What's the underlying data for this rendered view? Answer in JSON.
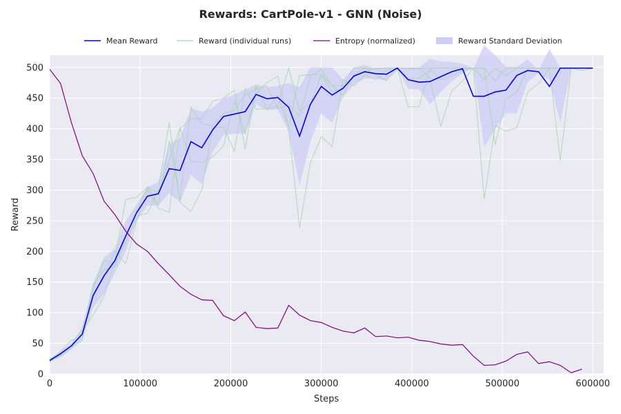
{
  "chart_data": {
    "type": "line",
    "title": "Rewards: CartPole-v1 - GNN (Noise)",
    "xlabel": "Steps",
    "ylabel": "Reward",
    "xlim": [
      0,
      612000
    ],
    "ylim": [
      0,
      520
    ],
    "xticks": [
      0,
      100000,
      200000,
      300000,
      400000,
      500000,
      600000
    ],
    "yticks": [
      0,
      50,
      100,
      150,
      200,
      250,
      300,
      350,
      400,
      450,
      500
    ],
    "grid": true,
    "legend_position": "top",
    "legend": [
      {
        "label": "Mean Reward",
        "color": "#0000ee",
        "kind": "line"
      },
      {
        "label": "Reward (individual runs)",
        "color": "#a8d5b0",
        "kind": "line"
      },
      {
        "label": "Entropy (normalized)",
        "color": "#800080",
        "kind": "line"
      },
      {
        "label": "Reward Standard Deviation",
        "color": "#ccccf5",
        "kind": "patch"
      }
    ],
    "x": [
      0,
      12000,
      24000,
      36000,
      48000,
      60000,
      72000,
      84000,
      96000,
      108000,
      120000,
      132000,
      144000,
      156000,
      168000,
      180000,
      192000,
      204000,
      216000,
      228000,
      240000,
      252000,
      264000,
      276000,
      288000,
      300000,
      312000,
      324000,
      336000,
      348000,
      360000,
      372000,
      384000,
      396000,
      408000,
      420000,
      432000,
      444000,
      456000,
      468000,
      480000,
      492000,
      504000,
      516000,
      528000,
      540000,
      552000,
      564000,
      576000,
      588000,
      600000
    ],
    "series": [
      {
        "name": "Mean Reward",
        "color": "#0000ee",
        "values": [
          22,
          33,
          46,
          65,
          128,
          160,
          185,
          225,
          263,
          290,
          294,
          335,
          332,
          379,
          369,
          398,
          420,
          424,
          428,
          456,
          449,
          451,
          435,
          388,
          440,
          469,
          455,
          466,
          486,
          493,
          490,
          489,
          499,
          480,
          476,
          477,
          485,
          493,
          498,
          453,
          453,
          460,
          463,
          487,
          495,
          493,
          469,
          499,
          499,
          499,
          499
        ]
      },
      {
        "name": "Entropy (normalized)",
        "color": "#800080",
        "values": [
          497,
          474,
          410,
          356,
          327,
          282,
          260,
          233,
          212,
          200,
          180,
          162,
          143,
          130,
          121,
          120,
          95,
          87,
          101,
          76,
          74,
          75,
          112,
          96,
          87,
          84,
          76,
          70,
          67,
          75,
          61,
          62,
          59,
          60,
          55,
          53,
          49,
          47,
          48,
          29,
          14,
          15,
          21,
          32,
          36,
          17,
          20,
          14,
          2,
          8,
          null
        ]
      }
    ],
    "runs": [
      [
        25,
        34,
        42,
        55,
        145,
        170,
        175,
        225,
        265,
        305,
        275,
        380,
        285,
        435,
        408,
        405,
        425,
        430,
        455,
        465,
        470,
        432,
        440,
        420,
        486,
        497,
        470,
        455,
        488,
        499,
        488,
        479,
        497,
        482,
        482,
        496,
        480,
        486,
        496,
        499,
        285,
        405,
        396,
        402,
        460,
        474,
        499,
        499,
        499,
        499,
        499
      ],
      [
        20,
        31,
        46,
        75,
        140,
        185,
        180,
        215,
        258,
        262,
        300,
        410,
        280,
        265,
        300,
        402,
        403,
        363,
        466,
        432,
        433,
        436,
        499,
        430,
        440,
        488,
        461,
        465,
        484,
        494,
        499,
        499,
        499,
        497,
        498,
        499,
        499,
        499,
        499,
        499,
        480,
        499,
        487,
        499,
        499,
        499,
        499,
        348,
        499,
        495,
        499
      ],
      [
        22,
        28,
        42,
        70,
        97,
        126,
        185,
        285,
        288,
        305,
        295,
        348,
        402,
        347,
        345,
        354,
        372,
        445,
        392,
        458,
        475,
        486,
        402,
        238,
        345,
        387,
        371,
        480,
        470,
        488,
        480,
        495,
        499,
        436,
        436,
        499,
        499,
        499,
        499,
        499,
        499,
        478,
        499,
        499,
        499,
        499,
        499,
        499,
        499,
        499,
        499
      ],
      [
        20,
        37,
        55,
        60,
        130,
        160,
        200,
        180,
        250,
        300,
        270,
        264,
        400,
        416,
        416,
        445,
        450,
        463,
        367,
        470,
        432,
        454,
        403,
        487,
        488,
        489,
        470,
        470,
        499,
        499,
        497,
        499,
        499,
        499,
        499,
        482,
        404,
        461,
        478,
        499,
        499,
        374,
        448,
        460,
        499,
        499,
        499,
        499,
        499,
        499,
        499
      ]
    ],
    "std_band": {
      "lower": [
        19,
        29,
        41,
        56,
        108,
        130,
        165,
        200,
        250,
        275,
        275,
        295,
        280,
        325,
        310,
        362,
        390,
        392,
        392,
        440,
        430,
        432,
        395,
        308,
        380,
        425,
        410,
        452,
        472,
        482,
        482,
        478,
        499,
        465,
        464,
        440,
        460,
        477,
        490,
        499,
        370,
        400,
        425,
        425,
        477,
        490,
        480,
        410,
        499,
        499,
        499
      ],
      "upper": [
        25,
        37,
        51,
        74,
        148,
        190,
        205,
        250,
        276,
        305,
        313,
        375,
        385,
        433,
        428,
        434,
        450,
        456,
        464,
        472,
        468,
        470,
        475,
        468,
        500,
        500,
        500,
        480,
        500,
        504,
        498,
        500,
        500,
        500,
        500,
        514,
        510,
        509,
        506,
        499,
        536,
        520,
        501,
        501,
        513,
        496,
        530,
        499,
        499,
        499,
        499
      ]
    }
  }
}
